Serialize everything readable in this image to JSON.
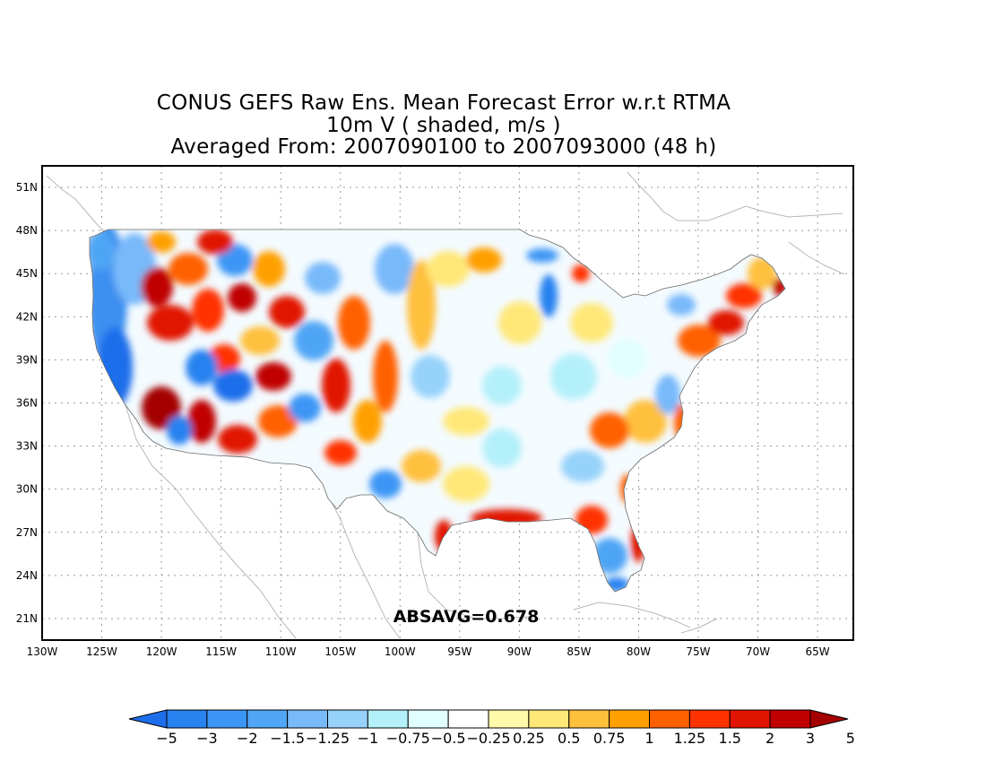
{
  "title": {
    "line1": "CONUS GEFS Raw Ens. Mean Forecast Error w.r.t RTMA",
    "line2": "10m V ( shaded, m/s )",
    "line3": "Averaged From: 2007090100 to 2007093000 (48 h)"
  },
  "annotation": "ABSAVG=0.678",
  "chart_data": {
    "type": "heatmap",
    "lon_ticks": [
      "130W",
      "125W",
      "120W",
      "115W",
      "110W",
      "105W",
      "100W",
      "95W",
      "90W",
      "85W",
      "80W",
      "75W",
      "70W",
      "65W"
    ],
    "lat_ticks": [
      "51N",
      "48N",
      "45N",
      "42N",
      "39N",
      "36N",
      "33N",
      "30N",
      "27N",
      "24N",
      "21N"
    ],
    "lon_range": [
      -130,
      -62
    ],
    "lat_range": [
      19.5,
      52.5
    ],
    "grid": true,
    "colorbar": {
      "labels": [
        "−5",
        "−3",
        "−2",
        "−1.5",
        "−1.25",
        "−1",
        "−0.75",
        "−0.5",
        "−0.25",
        "0.25",
        "0.5",
        "0.75",
        "1",
        "1.25",
        "1.5",
        "2",
        "3",
        "5"
      ],
      "colors": [
        "#1e6eeb",
        "#2882f0",
        "#3c96f5",
        "#50a5f5",
        "#78b9fa",
        "#96d2fa",
        "#b4f0fa",
        "#e1ffff",
        "#ffffff",
        "#fffaaa",
        "#ffe878",
        "#ffc03c",
        "#ffa000",
        "#ff6000",
        "#ff3200",
        "#e11400",
        "#c00000",
        "#a50000"
      ]
    }
  }
}
